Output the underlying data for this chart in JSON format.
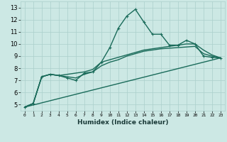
{
  "title": "",
  "xlabel": "Humidex (Indice chaleur)",
  "bg_color": "#cce8e4",
  "grid_color": "#aacfcb",
  "line_color": "#1a6b5a",
  "xlim": [
    -0.5,
    23.5
  ],
  "ylim": [
    4.5,
    13.5
  ],
  "xticks": [
    0,
    1,
    2,
    3,
    4,
    5,
    6,
    7,
    8,
    9,
    10,
    11,
    12,
    13,
    14,
    15,
    16,
    17,
    18,
    19,
    20,
    21,
    22,
    23
  ],
  "yticks": [
    5,
    6,
    7,
    8,
    9,
    10,
    11,
    12,
    13
  ],
  "series": [
    {
      "x": [
        0,
        1,
        2,
        3,
        4,
        5,
        6,
        7,
        8,
        9,
        10,
        11,
        12,
        13,
        14,
        15,
        16,
        17,
        18,
        19,
        20,
        21,
        22,
        23
      ],
      "y": [
        4.8,
        5.1,
        7.3,
        7.5,
        7.4,
        7.2,
        7.0,
        7.6,
        7.7,
        8.5,
        9.7,
        11.3,
        12.3,
        12.85,
        11.8,
        10.8,
        10.8,
        9.9,
        9.9,
        10.3,
        10.0,
        9.0,
        8.9,
        8.85
      ],
      "marker": "+"
    },
    {
      "x": [
        0,
        1,
        2,
        3,
        4,
        5,
        6,
        7,
        8,
        9,
        10,
        11,
        12,
        13,
        14,
        15,
        16,
        17,
        18,
        19,
        20,
        21,
        22,
        23
      ],
      "y": [
        4.8,
        5.1,
        7.3,
        7.5,
        7.4,
        7.5,
        7.6,
        7.7,
        7.9,
        8.5,
        8.7,
        8.9,
        9.1,
        9.3,
        9.5,
        9.6,
        9.7,
        9.8,
        9.9,
        10.0,
        10.0,
        9.5,
        9.1,
        8.85
      ],
      "marker": null
    },
    {
      "x": [
        0,
        1,
        2,
        3,
        4,
        5,
        6,
        7,
        8,
        9,
        10,
        11,
        12,
        13,
        14,
        15,
        16,
        17,
        18,
        19,
        20,
        21,
        22,
        23
      ],
      "y": [
        4.8,
        5.1,
        7.3,
        7.5,
        7.4,
        7.3,
        7.2,
        7.5,
        7.7,
        8.2,
        8.5,
        8.7,
        9.0,
        9.2,
        9.4,
        9.5,
        9.6,
        9.65,
        9.7,
        9.75,
        9.8,
        9.2,
        9.0,
        8.85
      ],
      "marker": null
    },
    {
      "x": [
        0,
        23
      ],
      "y": [
        4.8,
        8.85
      ],
      "marker": null
    }
  ]
}
